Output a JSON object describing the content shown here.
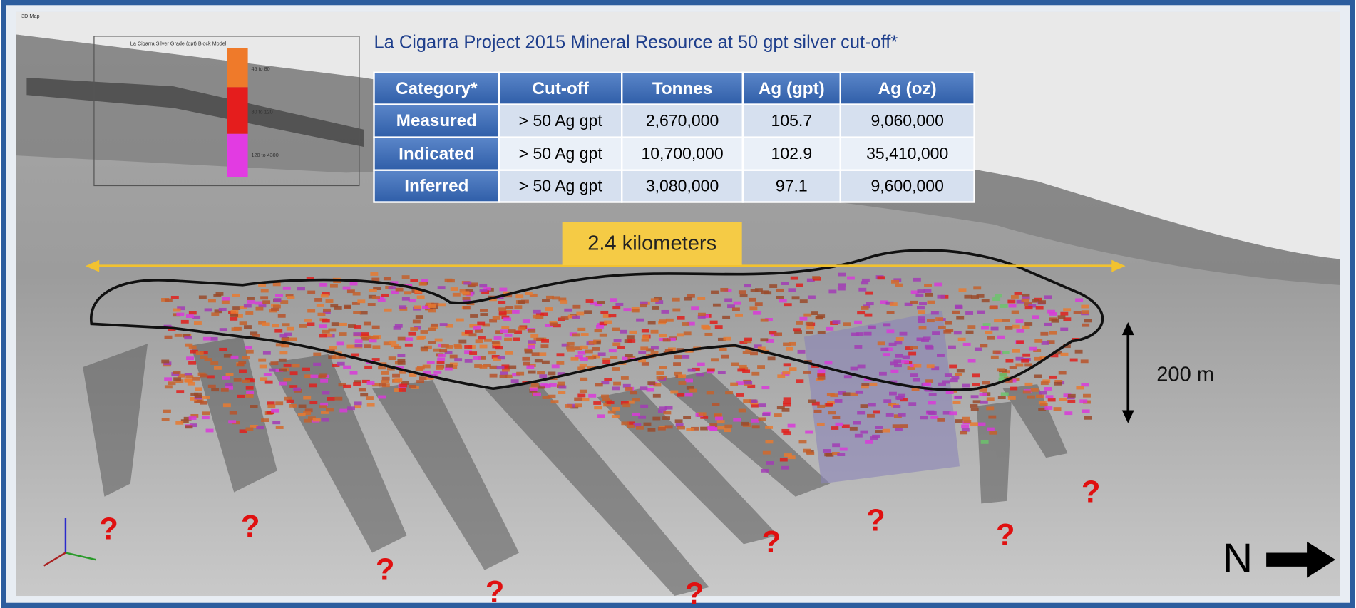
{
  "window_label": "3D Map",
  "title": "La Cigarra Project 2015 Mineral Resource at 50 gpt silver cut-off*",
  "table": {
    "headers": [
      "Category*",
      "Cut-off",
      "Tonnes",
      "Ag (gpt)",
      "Ag (oz)"
    ],
    "rows": [
      [
        "Measured",
        "> 50 Ag gpt",
        "2,670,000",
        "105.7",
        "9,060,000"
      ],
      [
        "Indicated",
        "> 50 Ag gpt",
        "10,700,000",
        "102.9",
        "35,410,000"
      ],
      [
        "Inferred",
        "> 50 Ag gpt",
        "3,080,000",
        "97.1",
        "9,600,000"
      ]
    ]
  },
  "legend": {
    "title": "La Cigarra Silver Grade (gpt) Block Model",
    "items": [
      "45 to 80",
      "80 to 120",
      "120 to 4300"
    ]
  },
  "annotations": {
    "length": "2.4 kilometers",
    "height": "200 m",
    "north": "N",
    "question_marks": [
      "?",
      "?",
      "?",
      "?",
      "?",
      "?",
      "?",
      "?",
      "?"
    ]
  }
}
